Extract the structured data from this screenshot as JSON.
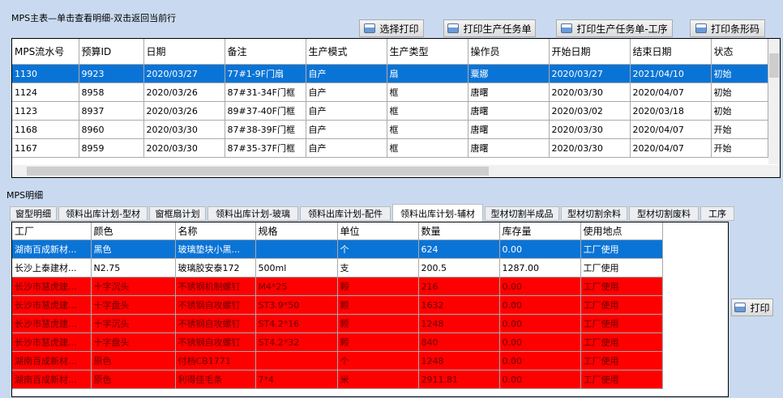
{
  "master": {
    "title": "MPS主表—单击查看明细-双击返回当前行",
    "buttons": [
      "选择打印",
      "打印生产任务单",
      "打印生产任务单-工序",
      "打印条形码"
    ],
    "columns": [
      "MPS流水号",
      "预算ID",
      "日期",
      "备注",
      "生产模式",
      "生产类型",
      "操作员",
      "开始日期",
      "结束日期",
      "状态"
    ],
    "rows": [
      [
        "1130",
        "9923",
        "2020/03/27",
        "77#1-9F门扇",
        "自产",
        "扇",
        "粟娜",
        "2020/03/27",
        "2021/04/10",
        "初始"
      ],
      [
        "1124",
        "8958",
        "2020/03/26",
        "87#31-34F门框",
        "自产",
        "框",
        "唐曙",
        "2020/03/30",
        "2020/04/07",
        "初始"
      ],
      [
        "1123",
        "8937",
        "2020/03/26",
        "89#37-40F门框",
        "自产",
        "框",
        "唐曙",
        "2020/03/02",
        "2020/03/18",
        "初始"
      ],
      [
        "1168",
        "8960",
        "2020/03/30",
        "87#38-39F门框",
        "自产",
        "框",
        "唐曙",
        "2020/03/30",
        "2020/04/07",
        "开始"
      ],
      [
        "1167",
        "8959",
        "2020/03/30",
        "87#35-37F门框",
        "自产",
        "框",
        "唐曙",
        "2020/03/30",
        "2020/04/07",
        "开始"
      ]
    ],
    "selected_row": 0
  },
  "detail": {
    "title": "MPS明细",
    "tabs": [
      "窗型明细",
      "领料出库计划-型材",
      "窗框扇计划",
      "领料出库计划-玻璃",
      "领料出库计划-配件",
      "领料出库计划-辅材",
      "型材切割半成品",
      "型材切割余料",
      "型材切割废料",
      "工序"
    ],
    "active_tab": 5,
    "columns": [
      "工厂",
      "颜色",
      "名称",
      "规格",
      "单位",
      "数量",
      "库存量",
      "使用地点"
    ],
    "rows": [
      [
        "湖南百成新材...",
        "黑色",
        "玻璃垫块小黑...",
        "",
        "个",
        "624",
        "0.00",
        "工厂使用"
      ],
      [
        "长沙上泰建材...",
        "N2.75",
        "玻璃胶安泰172",
        "500ml",
        "支",
        "200.5",
        "1287.00",
        "工厂使用"
      ],
      [
        "长沙市慧虎建...",
        "十字沉头",
        "不锈钢机制螺钉",
        "M4*25",
        "颗",
        "216",
        "0.00",
        "工厂使用"
      ],
      [
        "长沙市慧虎建...",
        "十字盘头",
        "不锈钢自攻螺钉",
        "ST3.9*50",
        "颗",
        "1632",
        "0.00",
        "工厂使用"
      ],
      [
        "长沙市慧虎建...",
        "十字沉头",
        "不锈钢自攻螺钉",
        "ST4.2*16",
        "颗",
        "1248",
        "0.00",
        "工厂使用"
      ],
      [
        "长沙市慧虎建...",
        "十字盘头",
        "不锈钢自攻螺钉",
        "ST4.2*32",
        "颗",
        "840",
        "0.00",
        "工厂使用"
      ],
      [
        "湖南百成新材...",
        "原色",
        "付档CB1771",
        "",
        "个",
        "1248",
        "0.00",
        "工厂使用"
      ],
      [
        "湖南百成新材...",
        "原色",
        "利得佳毛条",
        "7*4",
        "米",
        "2911.81",
        "0.00",
        "工厂使用"
      ]
    ],
    "row_styles": [
      "selected",
      "normal",
      "red",
      "red",
      "red",
      "red",
      "red",
      "red"
    ],
    "print_label": "打印"
  },
  "colors": {
    "selected": "#0a74d6",
    "warning": "#ff0000",
    "background": "#c9daf0"
  }
}
